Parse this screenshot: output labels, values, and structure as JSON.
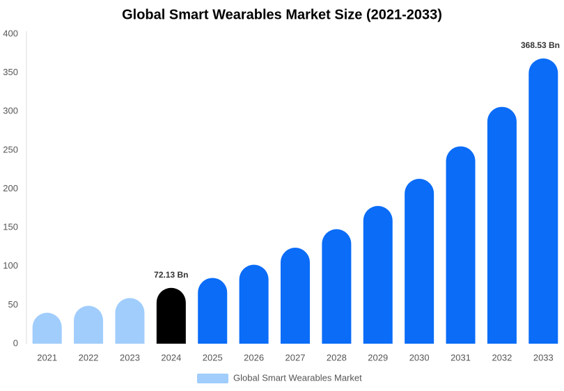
{
  "chart_data": {
    "type": "bar",
    "title": "Global Smart Wearables Market Size (2021-2033)",
    "categories": [
      "2021",
      "2022",
      "2023",
      "2024",
      "2025",
      "2026",
      "2027",
      "2028",
      "2029",
      "2030",
      "2031",
      "2032",
      "2033"
    ],
    "series": [
      {
        "name": "Global Smart Wearables Market",
        "color": "#a0cdfc",
        "values": [
          40,
          49,
          59,
          72.13,
          85,
          102,
          124,
          148,
          178,
          213,
          255,
          306,
          368.53
        ],
        "colors": [
          "#a0cdfc",
          "#a0cdfc",
          "#a0cdfc",
          "#000000",
          "#0a6cf7",
          "#0a6cf7",
          "#0a6cf7",
          "#0a6cf7",
          "#0a6cf7",
          "#0a6cf7",
          "#0a6cf7",
          "#0a6cf7",
          "#0a6cf7"
        ],
        "value_labels": [
          null,
          null,
          null,
          "72.13 Bn",
          null,
          null,
          null,
          null,
          null,
          null,
          null,
          null,
          "368.53 Bn"
        ]
      }
    ],
    "ylim": [
      0,
      400
    ],
    "yticks": [
      0,
      50,
      100,
      150,
      200,
      250,
      300,
      350,
      400
    ],
    "grid": false
  }
}
